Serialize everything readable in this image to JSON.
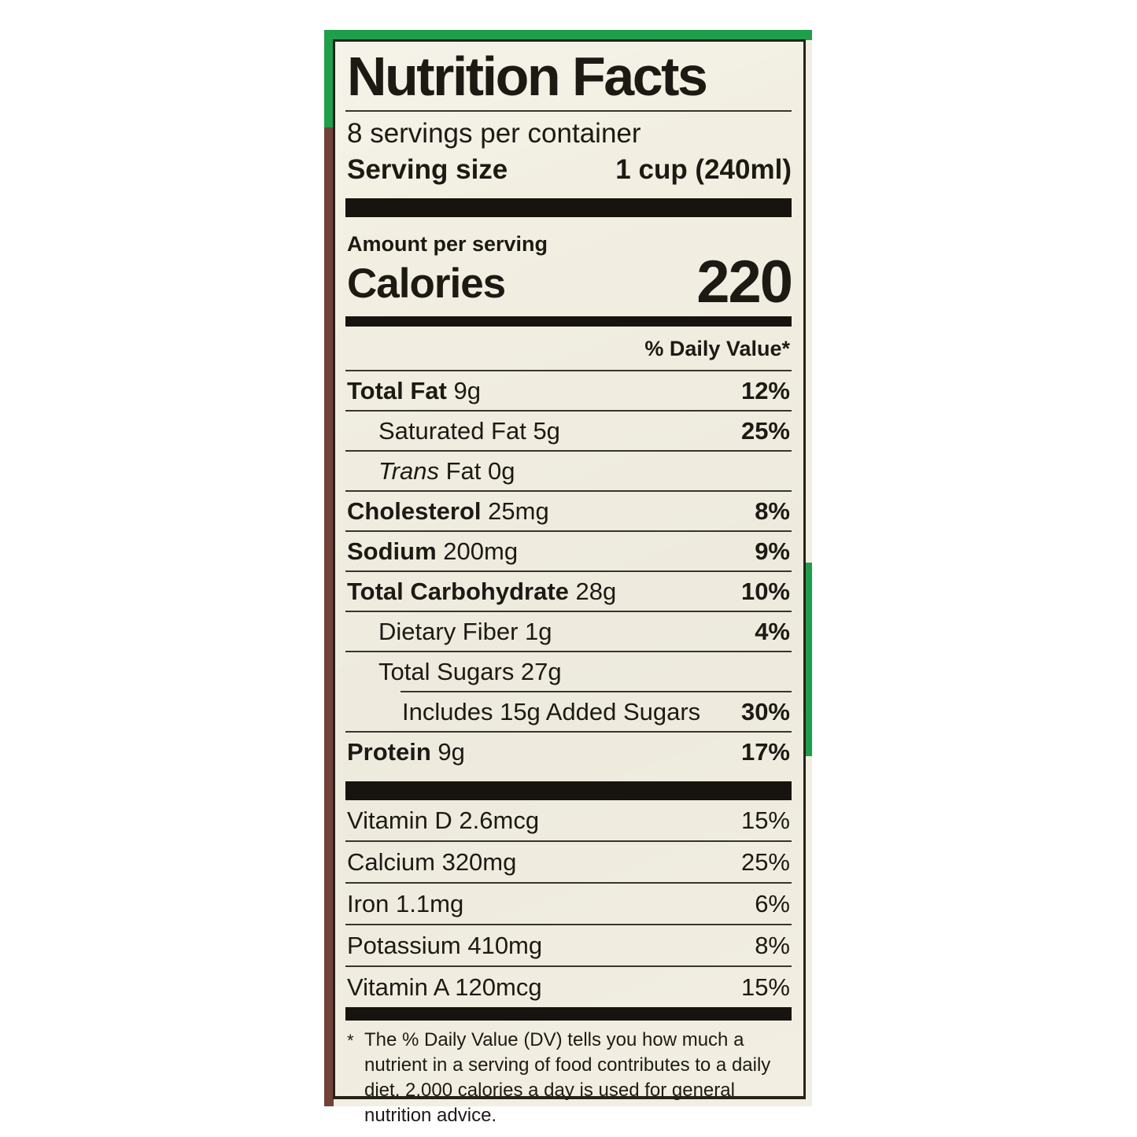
{
  "colors": {
    "label_background": "#f2efe2",
    "ink": "#1d1a14",
    "package_green": "#1f9f4b",
    "package_maroon": "#72413a",
    "photo_background": "#ffffff"
  },
  "label": {
    "title": "Nutrition Facts",
    "servings_per_container": "8 servings per container",
    "serving_size": {
      "label": "Serving size",
      "value": "1 cup (240ml)"
    },
    "amount_per_serving": "Amount per serving",
    "calories": {
      "label": "Calories",
      "value": "220"
    },
    "daily_value_header": "% Daily Value*",
    "nutrients": [
      {
        "b": "Total Fat",
        "r": " 9g",
        "dv": "12%"
      },
      {
        "r": "Saturated Fat 5g",
        "dv": "25%"
      },
      {
        "it": "Trans",
        "r": " Fat 0g",
        "dv": ""
      },
      {
        "b": "Cholesterol",
        "r": " 25mg",
        "dv": "8%"
      },
      {
        "b": "Sodium",
        "r": " 200mg",
        "dv": "9%"
      },
      {
        "b": "Total Carbohydrate",
        "r": " 28g",
        "dv": "10%"
      },
      {
        "r": "Dietary Fiber 1g",
        "dv": "4%"
      },
      {
        "r": "Total Sugars 27g",
        "dv": ""
      },
      {
        "r": "Includes 15g Added Sugars",
        "dv": "30%"
      },
      {
        "b": "Protein",
        "r": " 9g",
        "dv": "17%"
      }
    ],
    "vitamins": [
      {
        "text": "Vitamin D 2.6mcg",
        "dv": "15%"
      },
      {
        "text": "Calcium 320mg",
        "dv": "25%"
      },
      {
        "text": "Iron 1.1mg",
        "dv": "6%"
      },
      {
        "text": "Potassium 410mg",
        "dv": "8%"
      },
      {
        "text": "Vitamin A 120mcg",
        "dv": "15%"
      }
    ],
    "footnote": {
      "marker": "*",
      "text": "The % Daily Value (DV) tells you how much a nutrient in a serving of food contributes to a daily diet. 2,000 calories a day is used for general nutrition advice."
    }
  }
}
